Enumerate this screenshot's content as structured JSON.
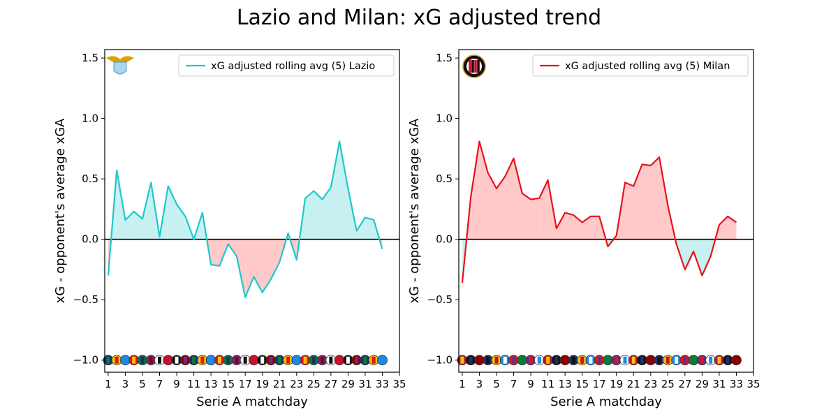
{
  "figure": {
    "title": "Lazio and Milan: xG adjusted trend"
  },
  "chart_data": [
    {
      "type": "line",
      "team": "Lazio",
      "xlabel": "Serie A matchday",
      "ylabel": "xG - opponent's average xGA",
      "xlim": [
        0.6,
        35
      ],
      "ylim": [
        -1.1,
        1.57
      ],
      "xticks": [
        1,
        3,
        5,
        7,
        9,
        11,
        13,
        15,
        17,
        19,
        21,
        23,
        25,
        27,
        29,
        31,
        33,
        35
      ],
      "yticks": [
        1.5,
        1.0,
        0.5,
        0.0,
        -0.5,
        -1.0
      ],
      "ytick_labels": [
        "1.5",
        "1.0",
        "0.5",
        "0.0",
        "−0.5",
        "−1.0"
      ],
      "line_color": "#1ec8cc",
      "fill_positive_color": "#c7f1f1",
      "fill_negative_color": "#ffc9c9",
      "legend": "xG adjusted rolling avg (5) Lazio",
      "legend_position": "upper right",
      "baseline": 0,
      "x": [
        1,
        2,
        3,
        4,
        5,
        6,
        7,
        8,
        9,
        10,
        11,
        12,
        13,
        14,
        15,
        16,
        17,
        18,
        19,
        20,
        21,
        22,
        23,
        24,
        25,
        26,
        27,
        28,
        29,
        30,
        31,
        32,
        33
      ],
      "values": [
        -0.3,
        0.57,
        0.16,
        0.23,
        0.17,
        0.47,
        0.02,
        0.44,
        0.29,
        0.19,
        0.0,
        0.22,
        -0.21,
        -0.22,
        -0.04,
        -0.14,
        -0.48,
        -0.31,
        -0.44,
        -0.33,
        -0.19,
        0.05,
        -0.17,
        0.34,
        0.4,
        0.33,
        0.43,
        0.81,
        0.42,
        0.07,
        0.18,
        0.16,
        -0.08
      ],
      "logo_icon": "lazio-eagle-crest-icon",
      "opponent_logo_icon": "opponent-club-crests-row-icon"
    },
    {
      "type": "line",
      "team": "Milan",
      "xlabel": "Serie A matchday",
      "ylabel": "xG - opponent's average xGA",
      "xlim": [
        0.6,
        35
      ],
      "ylim": [
        -1.1,
        1.57
      ],
      "xticks": [
        1,
        3,
        5,
        7,
        9,
        11,
        13,
        15,
        17,
        19,
        21,
        23,
        25,
        27,
        29,
        31,
        33,
        35
      ],
      "yticks": [
        1.5,
        1.0,
        0.5,
        0.0,
        -0.5,
        -1.0
      ],
      "ytick_labels": [
        "1.5",
        "1.0",
        "0.5",
        "0.0",
        "−0.5",
        "−1.0"
      ],
      "line_color": "#e8121a",
      "fill_positive_color": "#ffc9c9",
      "fill_negative_color": "#c7f1f1",
      "legend": "xG adjusted rolling avg (5) Milan",
      "legend_position": "upper right",
      "baseline": 0,
      "x": [
        1,
        2,
        3,
        4,
        5,
        6,
        7,
        8,
        9,
        10,
        11,
        12,
        13,
        14,
        15,
        16,
        17,
        18,
        19,
        20,
        21,
        22,
        23,
        24,
        25,
        26,
        27,
        28,
        29,
        30,
        31,
        32,
        33
      ],
      "values": [
        -0.36,
        0.35,
        0.81,
        0.55,
        0.42,
        0.52,
        0.67,
        0.38,
        0.33,
        0.34,
        0.49,
        0.09,
        0.22,
        0.2,
        0.14,
        0.19,
        0.19,
        -0.06,
        0.03,
        0.47,
        0.44,
        0.62,
        0.61,
        0.68,
        0.28,
        -0.04,
        -0.25,
        -0.1,
        -0.3,
        -0.14,
        0.12,
        0.19,
        0.14
      ],
      "logo_icon": "milan-club-crest-icon",
      "opponent_logo_icon": "opponent-club-crests-row-icon"
    }
  ]
}
